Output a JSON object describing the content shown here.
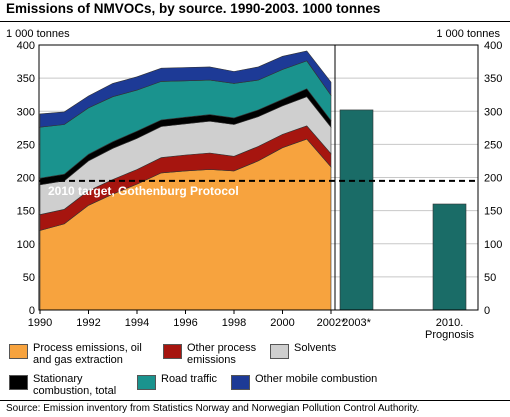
{
  "title": "Emissions of NMVOCs, by source. 1990-2003. 1000 tonnes",
  "source": "Source: Emission inventory from Statistics Norway and Norwegian Pollution Control Authority.",
  "chart_data": {
    "type": "area",
    "unit_left": "1 000 tonnes",
    "unit_right": "1 000 tonnes",
    "ylim": [
      0,
      400
    ],
    "yticks": [
      "0",
      "50",
      "100",
      "150",
      "200",
      "250",
      "300",
      "350",
      "400"
    ],
    "x": [
      1990,
      1991,
      1992,
      1993,
      1994,
      1995,
      1996,
      1997,
      1998,
      1999,
      2000,
      2001,
      2002
    ],
    "xtick_labels": [
      "1990",
      "1992",
      "1994",
      "1996",
      "1998",
      "2000",
      "2002*"
    ],
    "series": [
      {
        "name": "Process emissions, oil and gas extraction",
        "color": "#f7a33e",
        "values": [
          120,
          130,
          158,
          175,
          190,
          207,
          210,
          212,
          210,
          225,
          245,
          258,
          216
        ]
      },
      {
        "name": "Other process emissions",
        "color": "#a6150f",
        "values": [
          24,
          22,
          22,
          22,
          22,
          23,
          24,
          25,
          22,
          22,
          20,
          20,
          20
        ]
      },
      {
        "name": "Solvents",
        "color": "#cfcfcf",
        "values": [
          45,
          43,
          45,
          47,
          47,
          47,
          47,
          48,
          48,
          45,
          43,
          44,
          40
        ]
      },
      {
        "name": "Stationary combustion, total",
        "color": "#000000",
        "values": [
          10,
          10,
          10,
          10,
          11,
          10,
          10,
          10,
          10,
          10,
          10,
          12,
          10
        ]
      },
      {
        "name": "Road traffic",
        "color": "#1a938e",
        "values": [
          77,
          75,
          70,
          68,
          62,
          58,
          55,
          52,
          52,
          45,
          45,
          42,
          38
        ]
      },
      {
        "name": "Other mobile combustion",
        "color": "#1d3a96",
        "values": [
          20,
          19,
          18,
          20,
          20,
          20,
          20,
          20,
          18,
          20,
          20,
          15,
          20
        ]
      }
    ],
    "bars": [
      {
        "label": "2003*",
        "value": 302,
        "color": "#1a6c67"
      },
      {
        "label": "2010.\nPrognosis",
        "value": 160,
        "color": "#1a6c67"
      }
    ],
    "target_line": {
      "value": 195,
      "label": "2010 target, Gothenburg Protocol"
    },
    "grid": true,
    "legend_position": "bottom"
  }
}
